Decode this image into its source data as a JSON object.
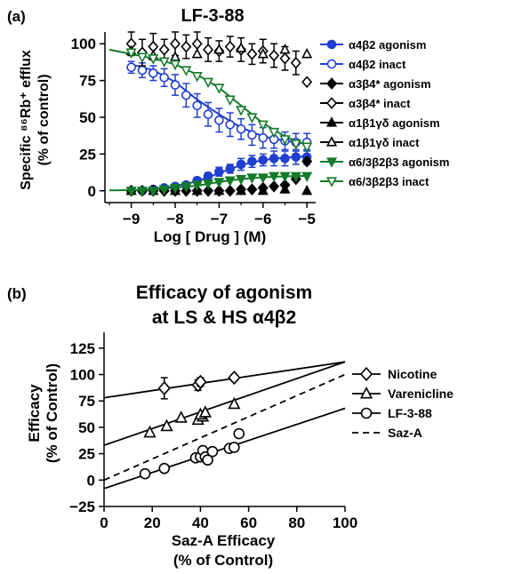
{
  "chart_data": [
    {
      "type": "scatter",
      "panel_label": "(a)",
      "title": "LF-3-88",
      "ylabel_line1": "Specific ⁸⁶Rb⁺ efflux",
      "ylabel_line2": "(% of control)",
      "xlabel": "Log [ Drug ] (M)",
      "xlim": [
        -9.6,
        -4.8
      ],
      "ylim": [
        -8,
        108
      ],
      "xticks": [
        -9,
        -8,
        -7,
        -6,
        -5
      ],
      "xtick_labels": [
        "−9",
        "−8",
        "−7",
        "−6",
        "−5"
      ],
      "yticks": [
        0,
        25,
        50,
        75,
        100
      ],
      "legend_position": "right",
      "series": [
        {
          "name": "α4β2 agonism",
          "color": "#1f3fd1",
          "marker": "circle",
          "filled": true,
          "x": [
            -9.0,
            -8.75,
            -8.5,
            -8.25,
            -8.0,
            -7.75,
            -7.5,
            -7.25,
            -7.0,
            -6.75,
            -6.5,
            -6.25,
            -6.0,
            -5.75,
            -5.5,
            -5.25,
            -5.0
          ],
          "y": [
            0,
            0,
            1,
            2,
            3,
            4,
            7,
            10,
            13,
            15,
            18,
            20,
            21,
            22,
            22,
            23,
            23
          ],
          "err": [
            1,
            1,
            1,
            1,
            1,
            1,
            2,
            2,
            3,
            3,
            4,
            4,
            4,
            5,
            5,
            5,
            5
          ],
          "fit_x": [
            -9.0,
            -8.5,
            -8.0,
            -7.5,
            -7.0,
            -6.5,
            -6.0,
            -5.5,
            -5.0
          ],
          "fit_y": [
            0.5,
            1.2,
            3,
            6.5,
            12,
            17.5,
            21,
            22.5,
            23.5
          ]
        },
        {
          "name": "α4β2 inact",
          "color": "#1f3fd1",
          "marker": "circle",
          "filled": false,
          "x": [
            -9.0,
            -8.75,
            -8.5,
            -8.25,
            -8.0,
            -7.75,
            -7.5,
            -7.25,
            -7.0,
            -6.75,
            -6.5,
            -6.25,
            -6.0,
            -5.75,
            -5.5,
            -5.25,
            -5.0
          ],
          "y": [
            84,
            82,
            80,
            77,
            72,
            65,
            58,
            52,
            48,
            45,
            42,
            38,
            36,
            35,
            34,
            33,
            33
          ],
          "err": [
            4,
            5,
            5,
            6,
            7,
            8,
            8,
            8,
            8,
            8,
            7,
            7,
            7,
            6,
            6,
            6,
            6
          ],
          "fit_x": [
            -9.0,
            -8.5,
            -8.0,
            -7.5,
            -7.0,
            -6.5,
            -6.0,
            -5.5,
            -5.0
          ],
          "fit_y": [
            86,
            82,
            74,
            62,
            52,
            43,
            37,
            34,
            32
          ]
        },
        {
          "name": "α3β4* agonism",
          "color": "#000000",
          "marker": "diamond",
          "filled": true,
          "x": [
            -9.0,
            -8.75,
            -8.5,
            -8.25,
            -8.0,
            -7.75,
            -7.5,
            -7.25,
            -7.0,
            -6.75,
            -6.5,
            -6.25,
            -6.0,
            -5.75,
            -5.5,
            -5.25,
            -5.0
          ],
          "y": [
            0,
            0,
            0,
            0,
            0,
            0,
            0,
            0,
            0,
            0,
            1,
            1,
            2,
            3,
            4,
            8,
            20
          ],
          "err": [],
          "fit_x": [],
          "fit_y": []
        },
        {
          "name": "α3β4* inact",
          "color": "#000000",
          "marker": "diamond",
          "filled": false,
          "x": [
            -9.0,
            -8.75,
            -8.5,
            -8.25,
            -8.0,
            -7.75,
            -7.5,
            -7.25,
            -7.0,
            -6.75,
            -6.5,
            -6.25,
            -6.0,
            -5.75,
            -5.5,
            -5.25,
            -5.0
          ],
          "y": [
            100,
            94,
            98,
            96,
            100,
            98,
            100,
            96,
            95,
            98,
            96,
            93,
            95,
            92,
            90,
            87,
            74
          ],
          "err": [
            8,
            9,
            9,
            7,
            8,
            8,
            8,
            8,
            7,
            7,
            8,
            7,
            8,
            8,
            8,
            8,
            0
          ],
          "fit_x": [],
          "fit_y": []
        },
        {
          "name": "α1β1γδ agonism",
          "color": "#000000",
          "marker": "triangle",
          "filled": true,
          "x": [
            -9.0,
            -8.5,
            -8.0,
            -7.5,
            -7.0,
            -6.5,
            -6.0,
            -5.5,
            -5.0
          ],
          "y": [
            0,
            0,
            0,
            0,
            0,
            0,
            0,
            1,
            0
          ],
          "err": [],
          "fit_x": [],
          "fit_y": []
        },
        {
          "name": "α1β1γδ inact",
          "color": "#000000",
          "marker": "triangle",
          "filled": false,
          "x": [
            -9.0,
            -8.5,
            -8.0,
            -7.5,
            -7.0,
            -6.5,
            -6.0,
            -5.5,
            -5.0
          ],
          "y": [
            95,
            92,
            91,
            93,
            96,
            97,
            93,
            96,
            93
          ],
          "err": [],
          "fit_x": [],
          "fit_y": []
        },
        {
          "name": "α6/3β2β3 agonism",
          "color": "#157a2a",
          "marker": "triangle-down",
          "filled": true,
          "x": [
            -9.0,
            -8.75,
            -8.5,
            -8.25,
            -8.0,
            -7.75,
            -7.5,
            -7.25,
            -7.0,
            -6.75,
            -6.5,
            -6.25,
            -6.0,
            -5.75,
            -5.5,
            -5.25,
            -5.0
          ],
          "y": [
            0,
            0,
            0,
            1,
            2,
            3,
            4,
            5,
            6,
            7,
            8,
            9,
            9,
            10,
            10,
            10,
            10
          ],
          "err": [],
          "fit_x": [
            -9.5,
            -8.5,
            -7.5,
            -7.0,
            -6.5,
            -6.0,
            -5.5,
            -5.0
          ],
          "fit_y": [
            0.3,
            0.8,
            3.5,
            6,
            8,
            9.2,
            9.8,
            10.2
          ]
        },
        {
          "name": "α6/3β2β3 inact",
          "color": "#157a2a",
          "marker": "triangle-down",
          "filled": false,
          "x": [
            -9.0,
            -8.75,
            -8.5,
            -8.25,
            -8.0,
            -7.75,
            -7.5,
            -7.25,
            -7.0,
            -6.75,
            -6.5,
            -6.25,
            -6.0,
            -5.75,
            -5.5,
            -5.25,
            -5.0
          ],
          "y": [
            94,
            91,
            90,
            88,
            86,
            82,
            78,
            74,
            70,
            62,
            55,
            50,
            45,
            40,
            35,
            32,
            30
          ],
          "err": [],
          "fit_x": [
            -9.5,
            -9.0,
            -8.5,
            -8.0,
            -7.5,
            -7.0,
            -6.5,
            -6.0,
            -5.5,
            -5.0
          ],
          "fit_y": [
            96,
            93,
            90,
            86,
            79,
            70,
            58,
            46,
            37,
            31
          ]
        }
      ]
    },
    {
      "type": "scatter",
      "panel_label": "(b)",
      "title_line1": "Efficacy of agonism",
      "title_line2": "at LS & HS α4β2",
      "ylabel_line1": "Efficacy",
      "ylabel_line2": "(% of Control)",
      "xlabel_line1": "Saz-A Efficacy",
      "xlabel_line2": "(% of Control)",
      "xlim": [
        0,
        100
      ],
      "ylim": [
        -25,
        140
      ],
      "xticks": [
        0,
        20,
        40,
        60,
        80,
        100
      ],
      "yticks": [
        -25,
        0,
        25,
        50,
        75,
        100,
        125
      ],
      "legend_position": "right",
      "series": [
        {
          "name": "Nicotine",
          "marker": "diamond",
          "color": "#000000",
          "points": [
            [
              25,
              87
            ],
            [
              39,
              90
            ],
            [
              40,
              93
            ],
            [
              54,
              97
            ]
          ],
          "err": [
            10,
            5,
            4,
            3
          ],
          "line": [
            [
              0,
              78
            ],
            [
              100,
              112
            ]
          ],
          "dashed": false
        },
        {
          "name": "Varenicline",
          "marker": "triangle",
          "color": "#000000",
          "points": [
            [
              19,
              45
            ],
            [
              26,
              51
            ],
            [
              32,
              59
            ],
            [
              39,
              57
            ],
            [
              41,
              60
            ],
            [
              40,
              62
            ],
            [
              42,
              64
            ],
            [
              54,
              72
            ]
          ],
          "err": [],
          "line": [
            [
              0,
              33
            ],
            [
              100,
              112
            ]
          ],
          "dashed": false
        },
        {
          "name": "LF-3-88",
          "marker": "circle",
          "color": "#000000",
          "points": [
            [
              17,
              6
            ],
            [
              25,
              11
            ],
            [
              38,
              21
            ],
            [
              40,
              22
            ],
            [
              41,
              28
            ],
            [
              42,
              22
            ],
            [
              43,
              19
            ],
            [
              45,
              27
            ],
            [
              52,
              30
            ],
            [
              54,
              31
            ],
            [
              56,
              44
            ]
          ],
          "err": [],
          "line": [
            [
              0,
              -8
            ],
            [
              100,
              68
            ]
          ],
          "dashed": false
        },
        {
          "name": "Saz-A",
          "marker": "none",
          "color": "#000000",
          "points": [],
          "err": [],
          "line": [
            [
              0,
              0
            ],
            [
              100,
              100
            ]
          ],
          "dashed": true
        }
      ]
    }
  ]
}
